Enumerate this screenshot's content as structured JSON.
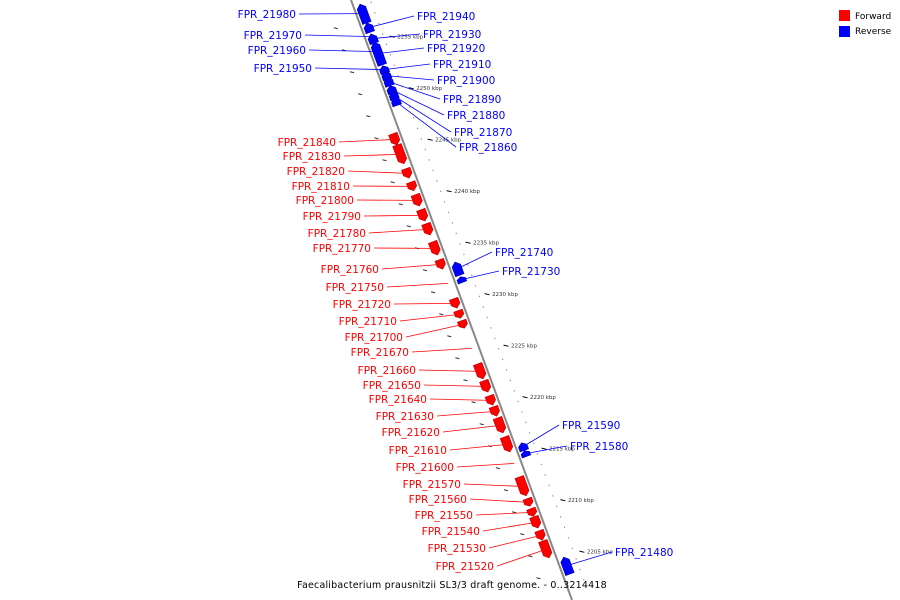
{
  "caption": "Faecalibacterium prausnitzii SL3/3 draft genome. - 0..3214418",
  "legend": [
    {
      "label": "Forward",
      "color": "#ff0000"
    },
    {
      "label": "Reverse",
      "color": "#0000ff"
    }
  ],
  "colors": {
    "forward": "#ff0000",
    "reverse": "#0000ff",
    "backbone": "#888888"
  },
  "ticks": [
    {
      "label": "2255 kbp",
      "bp": 2255000
    },
    {
      "label": "2250 kbp",
      "bp": 2250000
    },
    {
      "label": "2245 kbp",
      "bp": 2245000
    },
    {
      "label": "2240 kbp",
      "bp": 2240000
    },
    {
      "label": "2235 kbp",
      "bp": 2235000
    },
    {
      "label": "2230 kbp",
      "bp": 2230000
    },
    {
      "label": "2225 kbp",
      "bp": 2225000
    },
    {
      "label": "2220 kbp",
      "bp": 2220000
    },
    {
      "label": "2215 kbp",
      "bp": 2215000
    },
    {
      "label": "2210 kbp",
      "bp": 2210000
    },
    {
      "label": "2205 kbp",
      "bp": 2205000
    }
  ],
  "genes": [
    {
      "label": "FPR_21980",
      "strand": "reverse"
    },
    {
      "label": "FPR_21970",
      "strand": "reverse"
    },
    {
      "label": "FPR_21960",
      "strand": "reverse"
    },
    {
      "label": "FPR_21950",
      "strand": "reverse"
    },
    {
      "label": "FPR_21940",
      "strand": "reverse"
    },
    {
      "label": "FPR_21930",
      "strand": "reverse"
    },
    {
      "label": "FPR_21920",
      "strand": "reverse"
    },
    {
      "label": "FPR_21910",
      "strand": "reverse"
    },
    {
      "label": "FPR_21900",
      "strand": "reverse"
    },
    {
      "label": "FPR_21890",
      "strand": "reverse"
    },
    {
      "label": "FPR_21880",
      "strand": "reverse"
    },
    {
      "label": "FPR_21870",
      "strand": "reverse"
    },
    {
      "label": "FPR_21860",
      "strand": "reverse"
    },
    {
      "label": "FPR_21840",
      "strand": "forward"
    },
    {
      "label": "FPR_21830",
      "strand": "forward"
    },
    {
      "label": "FPR_21820",
      "strand": "forward"
    },
    {
      "label": "FPR_21810",
      "strand": "forward"
    },
    {
      "label": "FPR_21800",
      "strand": "forward"
    },
    {
      "label": "FPR_21790",
      "strand": "forward"
    },
    {
      "label": "FPR_21780",
      "strand": "forward"
    },
    {
      "label": "FPR_21770",
      "strand": "forward"
    },
    {
      "label": "FPR_21760",
      "strand": "forward"
    },
    {
      "label": "FPR_21750",
      "strand": "forward"
    },
    {
      "label": "FPR_21740",
      "strand": "reverse"
    },
    {
      "label": "FPR_21730",
      "strand": "reverse"
    },
    {
      "label": "FPR_21720",
      "strand": "forward"
    },
    {
      "label": "FPR_21710",
      "strand": "forward"
    },
    {
      "label": "FPR_21700",
      "strand": "forward"
    },
    {
      "label": "FPR_21670",
      "strand": "forward"
    },
    {
      "label": "FPR_21660",
      "strand": "forward"
    },
    {
      "label": "FPR_21650",
      "strand": "forward"
    },
    {
      "label": "FPR_21640",
      "strand": "forward"
    },
    {
      "label": "FPR_21630",
      "strand": "forward"
    },
    {
      "label": "FPR_21620",
      "strand": "forward"
    },
    {
      "label": "FPR_21610",
      "strand": "forward"
    },
    {
      "label": "FPR_21600",
      "strand": "forward"
    },
    {
      "label": "FPR_21590",
      "strand": "reverse"
    },
    {
      "label": "FPR_21580",
      "strand": "reverse"
    },
    {
      "label": "FPR_21570",
      "strand": "forward"
    },
    {
      "label": "FPR_21560",
      "strand": "forward"
    },
    {
      "label": "FPR_21550",
      "strand": "forward"
    },
    {
      "label": "FPR_21540",
      "strand": "forward"
    },
    {
      "label": "FPR_21530",
      "strand": "forward"
    },
    {
      "label": "FPR_21520",
      "strand": "forward"
    },
    {
      "label": "FPR_21480",
      "strand": "reverse"
    }
  ]
}
